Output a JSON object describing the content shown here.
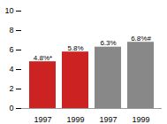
{
  "chart_data": {
    "type": "bar",
    "categories": [
      "1997",
      "1999",
      "1997",
      "1999"
    ],
    "values": [
      4.8,
      5.8,
      6.3,
      6.8
    ],
    "value_labels": [
      "4.8%*",
      "5.8%",
      "6.3%",
      "6.8%#"
    ],
    "data_labels": true,
    "colors": [
      "#cc2222",
      "#cc2222",
      "#888888",
      "#888888"
    ],
    "ylim": [
      0,
      10
    ],
    "yticks": [
      0,
      2,
      4,
      6,
      8,
      10
    ],
    "grid": false
  }
}
